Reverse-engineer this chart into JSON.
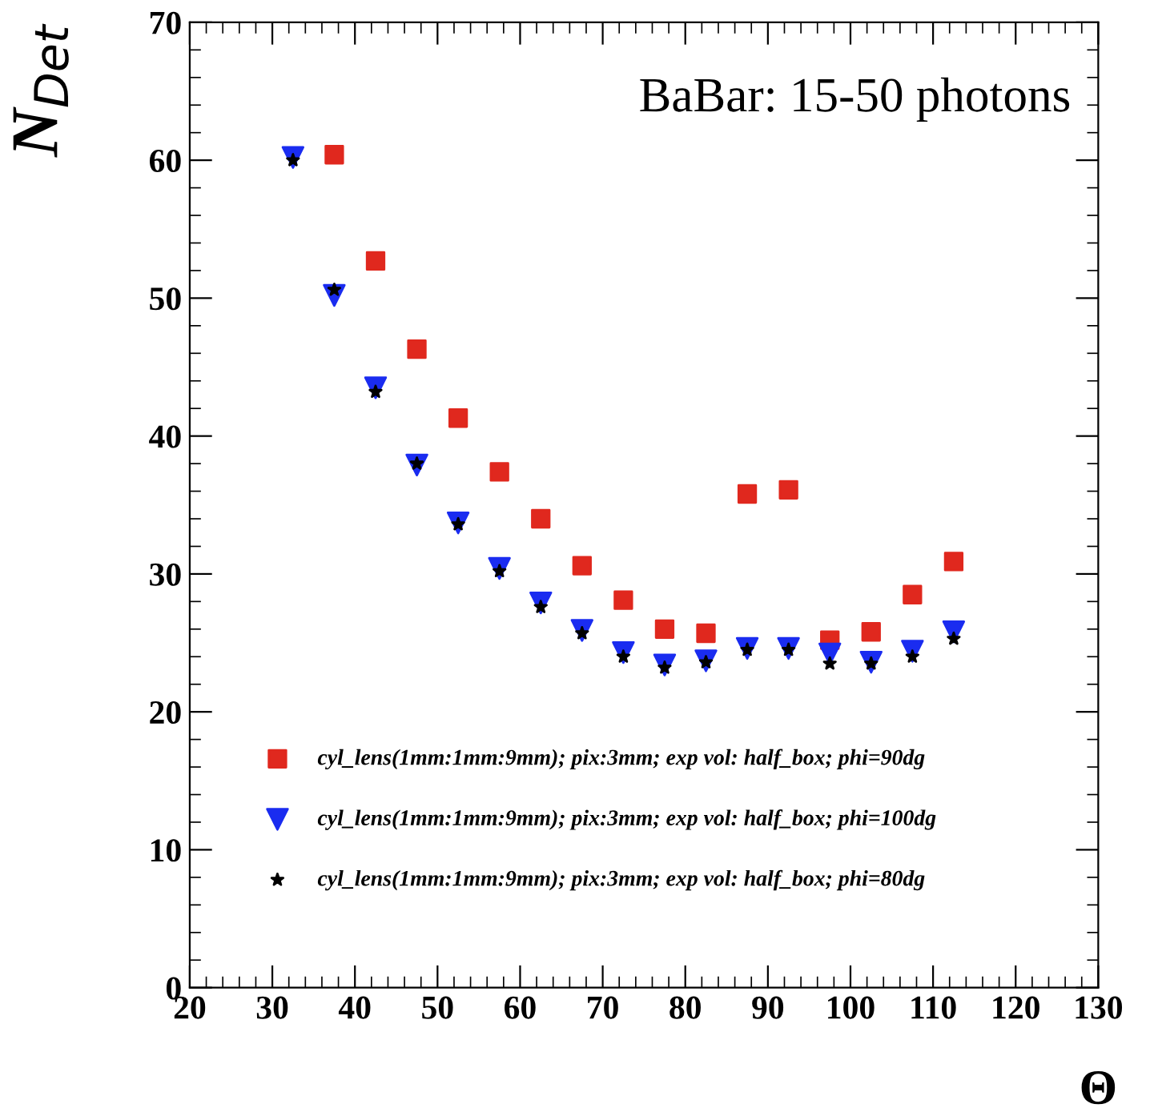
{
  "chart_data": {
    "type": "scatter",
    "xlabel": "Θ",
    "ylabel": "N$_{Det}$",
    "annotations": [
      "BaBar: 15-50 photons"
    ],
    "xlim": [
      20,
      130
    ],
    "xticks": [
      20,
      30,
      40,
      50,
      60,
      70,
      80,
      90,
      100,
      110,
      120,
      130
    ],
    "ylim": [
      0,
      70
    ],
    "yticks": [
      0,
      10,
      20,
      30,
      40,
      50,
      60,
      70
    ],
    "grid": false,
    "legend": "bottom left",
    "series": [
      {
        "name": "cyl_lens(1mm:1mm:9mm); pix:3mm; exp vol: half_box; phi=90dg",
        "color": "#e0281e",
        "marker": "square",
        "x": [
          37.5,
          42.5,
          47.5,
          52.5,
          57.5,
          62.5,
          67.5,
          72.5,
          77.5,
          82.5,
          87.5,
          92.5,
          97.5,
          102.5,
          107.5,
          112.5
        ],
        "values": [
          60.4,
          52.7,
          46.3,
          41.3,
          37.4,
          34.0,
          30.6,
          28.1,
          26.0,
          25.7,
          35.8,
          36.1,
          25.2,
          25.8,
          28.5,
          30.9
        ]
      },
      {
        "name": "cyl_lens(1mm:1mm:9mm); pix:3mm; exp vol: half_box; phi=100dg",
        "color": "#1a2cf0",
        "marker": "triangle",
        "x": [
          32.5,
          37.5,
          42.5,
          47.5,
          52.5,
          57.5,
          62.5,
          67.5,
          72.5,
          77.5,
          82.5,
          87.5,
          92.5,
          97.5,
          102.5,
          107.5,
          112.5
        ],
        "values": [
          60.2,
          50.2,
          43.5,
          37.9,
          33.7,
          30.4,
          27.9,
          25.9,
          24.3,
          23.4,
          23.7,
          24.6,
          24.6,
          24.2,
          23.6,
          24.4,
          25.8
        ]
      },
      {
        "name": "cyl_lens(1mm:1mm:9mm); pix:3mm; exp vol: half_box; phi=80dg",
        "color": "#000000",
        "marker": "star",
        "x": [
          32.5,
          37.5,
          42.5,
          47.5,
          52.5,
          57.5,
          62.5,
          67.5,
          72.5,
          77.5,
          82.5,
          87.5,
          92.5,
          97.5,
          102.5,
          107.5,
          112.5
        ],
        "values": [
          60.0,
          50.6,
          43.2,
          38.0,
          33.6,
          30.2,
          27.6,
          25.7,
          24.0,
          23.2,
          23.6,
          24.5,
          24.5,
          23.5,
          23.5,
          24.0,
          25.3
        ]
      }
    ]
  }
}
